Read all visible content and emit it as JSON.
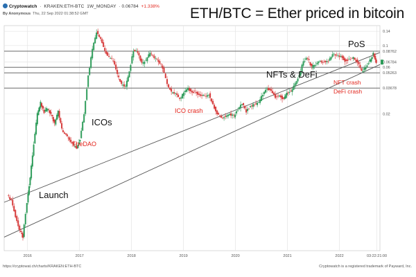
{
  "header": {
    "app_name": "Cryptowatch",
    "pair": "KRAKEN:ETH-BTC",
    "interval": "1W_MONDAY",
    "price": "0.06784",
    "change": "+1.338%",
    "author": "By Anonymous",
    "timestamp": "Thu, 22 Sep 2022 01:38:52 GMT"
  },
  "title": "ETH/BTC = Ether priced in bitcoin",
  "footer": {
    "url": "https://cryptowat.ch/charts/KRAKEN:ETH-BTC",
    "trademark": "Cryptowatch is a registered trademark of Payward, Inc."
  },
  "annotations": {
    "launch": "Launch",
    "icos": "ICOs",
    "the_dao": "TheDAO",
    "ico_crash": "ICO crash",
    "nfts_defi": "NFTs & DeFi",
    "pos": "PoS",
    "nft_crash": "NFT crash",
    "defi_crash": "DeFi crash"
  },
  "colors": {
    "up": "#2e9c5a",
    "down": "#d63a3a",
    "grid": "#e4e4e4",
    "line": "#555555",
    "accent_red": "#e2231a"
  },
  "chart_data": {
    "type": "candlestick",
    "y_scale": "log",
    "ylim": [
      0.0008,
      0.16
    ],
    "y_ticks": [
      {
        "value": 0.14,
        "label": "0.14"
      },
      {
        "value": 0.1,
        "label": "0.1"
      },
      {
        "value": 0.08762,
        "label": "0.08762"
      },
      {
        "value": 0.06784,
        "label": "0.06784"
      },
      {
        "value": 0.06,
        "label": "0.06"
      },
      {
        "value": 0.05263,
        "label": "0.05263"
      },
      {
        "value": 0.03678,
        "label": "0.03678"
      },
      {
        "value": 0.02,
        "label": "0.02"
      }
    ],
    "x_range": [
      2015.55,
      2022.78
    ],
    "x_ticks": [
      {
        "value": 2016,
        "label": "2016"
      },
      {
        "value": 2017,
        "label": "2017"
      },
      {
        "value": 2018,
        "label": "2018"
      },
      {
        "value": 2019,
        "label": "2019"
      },
      {
        "value": 2020,
        "label": "2020"
      },
      {
        "value": 2021,
        "label": "2021"
      },
      {
        "value": 2022,
        "label": "2022"
      },
      {
        "value": 2022.72,
        "label": "03:22:21:00"
      }
    ],
    "horizontal_levels": [
      0.08762,
      0.06,
      0.05263,
      0.03678
    ],
    "trend_channel": [
      {
        "name": "upper",
        "from": {
          "x": 2015.55,
          "y": 0.0025
        },
        "to": {
          "x": 2022.78,
          "y": 0.085
        }
      },
      {
        "name": "lower",
        "from": {
          "x": 2015.55,
          "y": 0.0011
        },
        "to": {
          "x": 2022.78,
          "y": 0.064
        }
      }
    ],
    "series": [
      {
        "x": 2015.62,
        "y": 0.003
      },
      {
        "x": 2015.7,
        "y": 0.0026
      },
      {
        "x": 2015.78,
        "y": 0.0018
      },
      {
        "x": 2015.86,
        "y": 0.0013
      },
      {
        "x": 2015.92,
        "y": 0.0011
      },
      {
        "x": 2016.0,
        "y": 0.0025
      },
      {
        "x": 2016.06,
        "y": 0.0045
      },
      {
        "x": 2016.13,
        "y": 0.01
      },
      {
        "x": 2016.2,
        "y": 0.02
      },
      {
        "x": 2016.26,
        "y": 0.026
      },
      {
        "x": 2016.33,
        "y": 0.021
      },
      {
        "x": 2016.4,
        "y": 0.023
      },
      {
        "x": 2016.46,
        "y": 0.02
      },
      {
        "x": 2016.53,
        "y": 0.016
      },
      {
        "x": 2016.6,
        "y": 0.021
      },
      {
        "x": 2016.67,
        "y": 0.014
      },
      {
        "x": 2016.75,
        "y": 0.012
      },
      {
        "x": 2016.82,
        "y": 0.011
      },
      {
        "x": 2016.9,
        "y": 0.0095
      },
      {
        "x": 2016.96,
        "y": 0.009
      },
      {
        "x": 2017.02,
        "y": 0.011
      },
      {
        "x": 2017.1,
        "y": 0.02
      },
      {
        "x": 2017.18,
        "y": 0.05
      },
      {
        "x": 2017.26,
        "y": 0.09
      },
      {
        "x": 2017.34,
        "y": 0.14
      },
      {
        "x": 2017.42,
        "y": 0.115
      },
      {
        "x": 2017.5,
        "y": 0.09
      },
      {
        "x": 2017.58,
        "y": 0.075
      },
      {
        "x": 2017.66,
        "y": 0.07
      },
      {
        "x": 2017.74,
        "y": 0.05
      },
      {
        "x": 2017.82,
        "y": 0.04
      },
      {
        "x": 2017.9,
        "y": 0.038
      },
      {
        "x": 2017.97,
        "y": 0.055
      },
      {
        "x": 2018.05,
        "y": 0.09
      },
      {
        "x": 2018.13,
        "y": 0.085
      },
      {
        "x": 2018.21,
        "y": 0.065
      },
      {
        "x": 2018.29,
        "y": 0.07
      },
      {
        "x": 2018.37,
        "y": 0.085
      },
      {
        "x": 2018.45,
        "y": 0.075
      },
      {
        "x": 2018.53,
        "y": 0.07
      },
      {
        "x": 2018.61,
        "y": 0.06
      },
      {
        "x": 2018.7,
        "y": 0.04
      },
      {
        "x": 2018.78,
        "y": 0.033
      },
      {
        "x": 2018.86,
        "y": 0.032
      },
      {
        "x": 2018.94,
        "y": 0.028
      },
      {
        "x": 2019.02,
        "y": 0.033
      },
      {
        "x": 2019.1,
        "y": 0.036
      },
      {
        "x": 2019.18,
        "y": 0.034
      },
      {
        "x": 2019.26,
        "y": 0.033
      },
      {
        "x": 2019.34,
        "y": 0.031
      },
      {
        "x": 2019.42,
        "y": 0.03
      },
      {
        "x": 2019.5,
        "y": 0.032
      },
      {
        "x": 2019.58,
        "y": 0.025
      },
      {
        "x": 2019.66,
        "y": 0.02
      },
      {
        "x": 2019.74,
        "y": 0.018
      },
      {
        "x": 2019.82,
        "y": 0.019
      },
      {
        "x": 2019.9,
        "y": 0.02
      },
      {
        "x": 2019.98,
        "y": 0.019
      },
      {
        "x": 2020.06,
        "y": 0.022
      },
      {
        "x": 2020.14,
        "y": 0.026
      },
      {
        "x": 2020.22,
        "y": 0.021
      },
      {
        "x": 2020.3,
        "y": 0.024
      },
      {
        "x": 2020.38,
        "y": 0.025
      },
      {
        "x": 2020.46,
        "y": 0.026
      },
      {
        "x": 2020.54,
        "y": 0.032
      },
      {
        "x": 2020.62,
        "y": 0.037
      },
      {
        "x": 2020.7,
        "y": 0.034
      },
      {
        "x": 2020.78,
        "y": 0.03
      },
      {
        "x": 2020.86,
        "y": 0.031
      },
      {
        "x": 2020.94,
        "y": 0.028
      },
      {
        "x": 2021.0,
        "y": 0.033
      },
      {
        "x": 2021.08,
        "y": 0.034
      },
      {
        "x": 2021.16,
        "y": 0.04
      },
      {
        "x": 2021.24,
        "y": 0.05
      },
      {
        "x": 2021.32,
        "y": 0.07
      },
      {
        "x": 2021.4,
        "y": 0.075
      },
      {
        "x": 2021.48,
        "y": 0.06
      },
      {
        "x": 2021.56,
        "y": 0.065
      },
      {
        "x": 2021.64,
        "y": 0.07
      },
      {
        "x": 2021.72,
        "y": 0.068
      },
      {
        "x": 2021.8,
        "y": 0.07
      },
      {
        "x": 2021.88,
        "y": 0.082
      },
      {
        "x": 2021.96,
        "y": 0.08
      },
      {
        "x": 2022.04,
        "y": 0.078
      },
      {
        "x": 2022.12,
        "y": 0.07
      },
      {
        "x": 2022.2,
        "y": 0.072
      },
      {
        "x": 2022.28,
        "y": 0.075
      },
      {
        "x": 2022.36,
        "y": 0.068
      },
      {
        "x": 2022.44,
        "y": 0.055
      },
      {
        "x": 2022.52,
        "y": 0.06
      },
      {
        "x": 2022.6,
        "y": 0.07
      },
      {
        "x": 2022.66,
        "y": 0.083
      },
      {
        "x": 2022.72,
        "y": 0.0678
      }
    ]
  }
}
